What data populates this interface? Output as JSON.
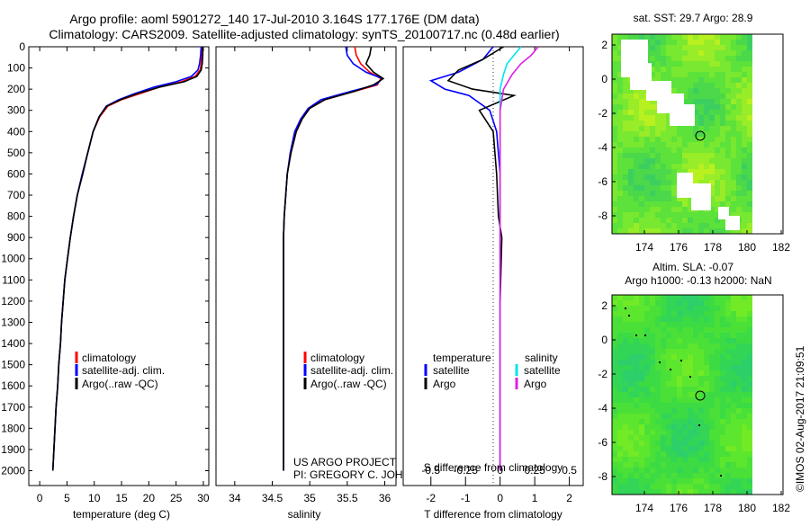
{
  "header": {
    "title_line1": "Argo profile: aoml 5901272_140 17-Jul-2010 3.164S 177.176E (DM data)",
    "title_line2": "Climatology: CARS2009. Satellite-adjusted climatology: synTS_20100717.nc (0.48d earlier)"
  },
  "colors": {
    "climatology": "#ff0000",
    "satellite": "#0000ff",
    "argo": "#000000",
    "salinity_satellite": "#00e5ee",
    "salinity_argo": "#e020e0",
    "map_green": "#22d322"
  },
  "legend": {
    "climatology": "climatology",
    "satellite_adj": "satellite-adj. clim.",
    "argo_raw": "Argo(..raw -QC)",
    "temperature_heading": "temperature",
    "salinity_heading": "salinity",
    "satellite": "satellite",
    "argo": "Argo"
  },
  "credits": {
    "project": "US ARGO PROJECT",
    "pi": "PI: GREGORY C. JOHNSON",
    "timestamp": "©IMOS 02-Aug-2017 21:09:51"
  },
  "maps": {
    "sst_title": "sat. SST: 29.7 Argo: 28.9",
    "sla_title_line1": "Altim. SLA: -0.07",
    "sla_title_line2": "Argo h1000: -0.13 h2000: NaN",
    "x_ticks": [
      "174",
      "176",
      "178",
      "180",
      "182"
    ],
    "y_ticks": [
      "2",
      "0",
      "-2",
      "-4",
      "-6",
      "-8"
    ]
  },
  "chart_data": [
    {
      "type": "line",
      "name": "temperature-profile",
      "xlabel": "temperature (deg C)",
      "ylabel": "",
      "xlim": [
        -2,
        31
      ],
      "ylim": [
        2070,
        0
      ],
      "x_ticks": [
        "0",
        "5",
        "10",
        "15",
        "20",
        "25",
        "30"
      ],
      "y_ticks": [
        "0",
        "100",
        "200",
        "300",
        "400",
        "500",
        "600",
        "700",
        "800",
        "900",
        "1000",
        "1100",
        "1200",
        "1300",
        "1400",
        "1500",
        "1600",
        "1700",
        "1800",
        "1900",
        "2000"
      ],
      "series": [
        {
          "name": "climatology",
          "x": [
            29.8,
            29.7,
            29.6,
            29.4,
            28.5,
            26,
            22,
            18.5,
            15,
            12.5,
            11,
            9.8,
            8.8,
            7.8,
            6.9,
            6.2,
            5.6,
            5.1,
            4.6,
            4.3,
            4.0,
            3.8,
            3.5,
            3.3,
            3.0,
            2.8,
            2.6,
            2.4
          ],
          "y": [
            0,
            40,
            80,
            110,
            140,
            165,
            190,
            220,
            250,
            280,
            330,
            400,
            500,
            600,
            700,
            800,
            900,
            1000,
            1100,
            1200,
            1300,
            1400,
            1500,
            1600,
            1700,
            1800,
            1900,
            2000
          ]
        },
        {
          "name": "satellite-adj. clim.",
          "x": [
            29.6,
            29.5,
            29.3,
            29.0,
            27.8,
            25,
            21,
            17.5,
            14.5,
            12.2,
            10.9,
            9.8,
            8.8,
            7.8,
            6.9,
            6.2,
            5.6,
            5.1,
            4.6,
            4.3,
            4.0,
            3.8,
            3.5,
            3.3,
            3.0,
            2.8,
            2.6,
            2.4
          ],
          "y": [
            0,
            40,
            80,
            110,
            140,
            165,
            190,
            220,
            250,
            280,
            330,
            400,
            500,
            600,
            700,
            800,
            900,
            1000,
            1100,
            1200,
            1300,
            1400,
            1500,
            1600,
            1700,
            1800,
            1900,
            2000
          ]
        },
        {
          "name": "Argo(..raw -QC)",
          "x": [
            29.9,
            29.9,
            29.8,
            29.6,
            28.8,
            26.5,
            22,
            18,
            14.8,
            12.3,
            10.9,
            9.8,
            8.8,
            7.9,
            6.9,
            6.2,
            5.6,
            5.1,
            4.6,
            4.3,
            4.0,
            3.8,
            3.5,
            3.3,
            3.0,
            2.8,
            2.6,
            2.4
          ],
          "y": [
            0,
            40,
            80,
            110,
            140,
            165,
            190,
            220,
            250,
            280,
            330,
            400,
            500,
            600,
            700,
            800,
            900,
            1000,
            1100,
            1200,
            1300,
            1400,
            1500,
            1600,
            1700,
            1800,
            1900,
            2000
          ]
        }
      ]
    },
    {
      "type": "line",
      "name": "salinity-profile",
      "xlabel": "salinity",
      "ylabel": "",
      "xlim": [
        33.75,
        36.15
      ],
      "ylim": [
        2070,
        0
      ],
      "x_ticks": [
        "34",
        "34.5",
        "35",
        "35.5",
        "36"
      ],
      "series": [
        {
          "name": "climatology",
          "x": [
            35.6,
            35.62,
            35.68,
            35.8,
            35.95,
            35.9,
            35.6,
            35.2,
            35.0,
            34.9,
            34.82,
            34.75,
            34.7,
            34.68,
            34.66,
            34.65,
            34.65,
            34.65,
            34.65,
            34.65,
            34.65,
            34.65,
            34.65,
            34.65,
            34.65
          ],
          "y": [
            0,
            40,
            80,
            120,
            150,
            180,
            210,
            250,
            290,
            340,
            400,
            500,
            600,
            700,
            800,
            900,
            1000,
            1100,
            1200,
            1400,
            1600,
            1700,
            1800,
            1900,
            2000
          ]
        },
        {
          "name": "satellite-adj. clim.",
          "x": [
            35.48,
            35.5,
            35.58,
            35.75,
            35.97,
            35.88,
            35.55,
            35.15,
            34.98,
            34.88,
            34.8,
            34.74,
            34.7,
            34.68,
            34.66,
            34.65,
            34.65,
            34.65,
            34.65,
            34.65,
            34.65,
            34.65,
            34.65,
            34.65,
            34.65
          ],
          "y": [
            0,
            40,
            80,
            120,
            150,
            180,
            210,
            250,
            290,
            340,
            400,
            500,
            600,
            700,
            800,
            900,
            1000,
            1100,
            1200,
            1400,
            1600,
            1700,
            1800,
            1900,
            2000
          ]
        },
        {
          "name": "Argo(..raw -QC)",
          "x": [
            35.82,
            35.8,
            35.75,
            35.85,
            35.98,
            35.85,
            35.6,
            35.2,
            35.0,
            34.9,
            34.82,
            34.75,
            34.7,
            34.68,
            34.66,
            34.65,
            34.65,
            34.65,
            34.65,
            34.65,
            34.65,
            34.65,
            34.65,
            34.65,
            34.65
          ],
          "y": [
            0,
            40,
            80,
            120,
            150,
            180,
            210,
            250,
            290,
            340,
            400,
            500,
            600,
            700,
            800,
            900,
            1000,
            1100,
            1200,
            1400,
            1600,
            1700,
            1800,
            1900,
            2000
          ]
        }
      ]
    },
    {
      "type": "line",
      "name": "difference-profile",
      "xlabel": "T difference from climatology",
      "x2label": "S difference from climatology",
      "xlim": [
        -2.8,
        2.4
      ],
      "ylim": [
        2070,
        0
      ],
      "x_ticks": [
        "-2",
        "-1",
        "0",
        "1",
        "2"
      ],
      "x2_ticks": [
        "-0.5",
        "-0.25",
        "0",
        "0.25",
        "0.5"
      ],
      "series": [
        {
          "name": "temperature satellite",
          "x": [
            -0.2,
            -0.5,
            -1.2,
            -2.0,
            -1.6,
            -0.9,
            -0.3,
            -0.1,
            0,
            0,
            0,
            0,
            0,
            0,
            0
          ],
          "y": [
            0,
            60,
            120,
            160,
            200,
            230,
            300,
            400,
            600,
            800,
            1000,
            1200,
            1500,
            1800,
            2000
          ]
        },
        {
          "name": "temperature Argo",
          "x": [
            0.1,
            -0.5,
            -1.2,
            -1.5,
            -0.8,
            0.4,
            -0.6,
            -0.2,
            -0.1,
            -0.05,
            0.05,
            0,
            0,
            0,
            0
          ],
          "y": [
            0,
            60,
            110,
            160,
            200,
            230,
            300,
            400,
            600,
            800,
            900,
            1200,
            1500,
            1800,
            2000
          ]
        },
        {
          "name": "salinity satellite",
          "x": [
            0.6,
            0.4,
            0.2,
            0.1,
            0,
            0,
            0,
            0,
            0,
            0,
            0
          ],
          "y": [
            0,
            40,
            80,
            130,
            200,
            300,
            500,
            800,
            1200,
            1600,
            2000
          ]
        },
        {
          "name": "salinity Argo",
          "x": [
            1.1,
            0.9,
            0.6,
            0.35,
            0.1,
            0,
            0,
            0,
            0,
            0,
            0
          ],
          "y": [
            0,
            40,
            80,
            130,
            200,
            300,
            500,
            800,
            1200,
            1600,
            2000
          ]
        }
      ]
    }
  ]
}
